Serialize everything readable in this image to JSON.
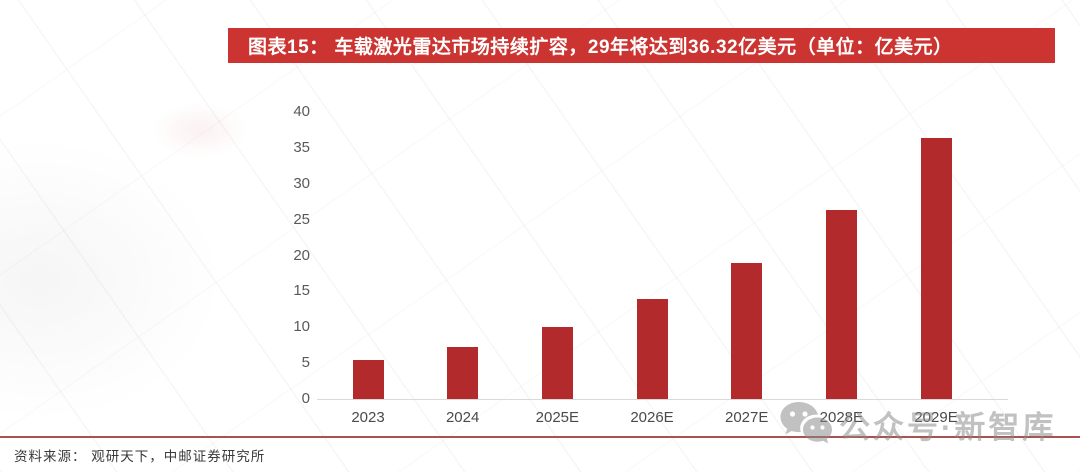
{
  "banner": {
    "text": "图表15： 车载激光雷达市场持续扩容，29年将达到36.32亿美元（单位：亿美元）"
  },
  "chart_data": {
    "type": "bar",
    "title": "车载激光雷达市场持续扩容，29年将达到36.32亿美元",
    "unit": "亿美元",
    "categories": [
      "2023",
      "2024",
      "2025E",
      "2026E",
      "2027E",
      "2028E",
      "2029E"
    ],
    "values": [
      5.4,
      7.3,
      10.1,
      13.9,
      19.0,
      26.4,
      36.32
    ],
    "ylim": [
      0,
      40
    ],
    "yticks": [
      0,
      5,
      10,
      15,
      20,
      25,
      30,
      35,
      40
    ],
    "grid": false,
    "legend_position": "none",
    "xlabel": "",
    "ylabel": ""
  },
  "footer": {
    "source": "资料来源： 观研天下，中邮证券研究所"
  },
  "watermark": {
    "icon": "wechat-icon",
    "text": "公众号·新智库"
  },
  "colors": {
    "banner_bg": "#cb3431",
    "banner_text": "#ffffff",
    "bar": "#b22a2c",
    "axis_line": "#d9d9d9",
    "tick_label": "#595959",
    "category_label": "#4a4a4a",
    "separator": "#9d3a38",
    "source_text": "#3a3a3a",
    "watermark": "#8a8a8a"
  }
}
